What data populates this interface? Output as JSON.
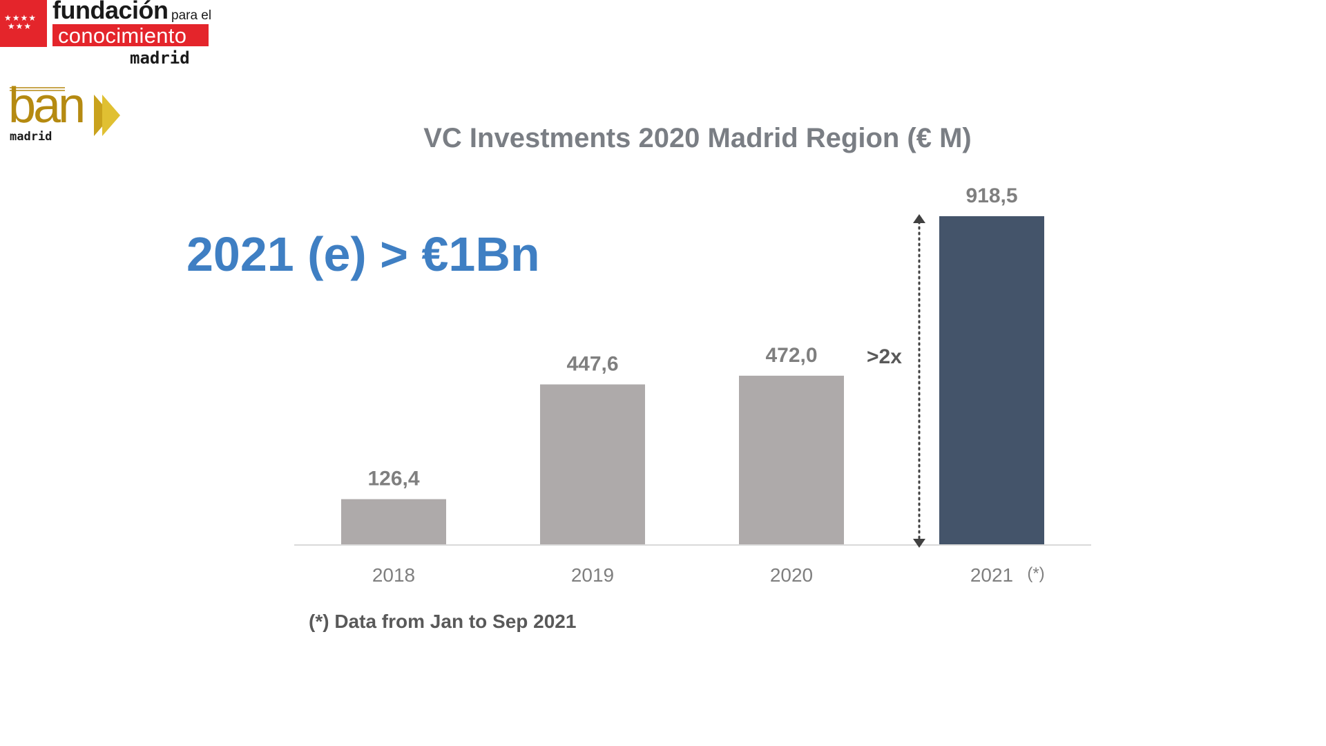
{
  "logos": {
    "fundacion": {
      "line1": "fundación",
      "line1_small": "para el",
      "line2": "conocimiento",
      "line3": "madrid",
      "stars": "★★★★\n★★★",
      "color": "#e4252b"
    },
    "ban": {
      "word": "ban",
      "sub": "madrid",
      "color": "#b58a11"
    }
  },
  "headline": "2021 (e) > €1Bn",
  "headline_color": "#3f7fc3",
  "footnote": "(*) Data from Jan to Sep 2021",
  "annotation": {
    "multiplier": ">2x"
  },
  "chart_data": {
    "type": "bar",
    "title": "VC Investments 2020 Madrid Region (€ M)",
    "categories": [
      "2018",
      "2019",
      "2020",
      "2021"
    ],
    "category_notes": [
      "",
      "",
      "",
      "(*)"
    ],
    "values": [
      126.4,
      447.6,
      472.0,
      918.5
    ],
    "value_labels": [
      "126,4",
      "447,6",
      "472,0",
      "918,5"
    ],
    "bar_colors": [
      "#aeaaaa",
      "#aeaaaa",
      "#aeaaaa",
      "#44546a"
    ],
    "ylim": [
      0,
      918.5
    ],
    "xlabel": "",
    "ylabel": "",
    "grid": false,
    "axis_color": "#d9d9d9"
  }
}
